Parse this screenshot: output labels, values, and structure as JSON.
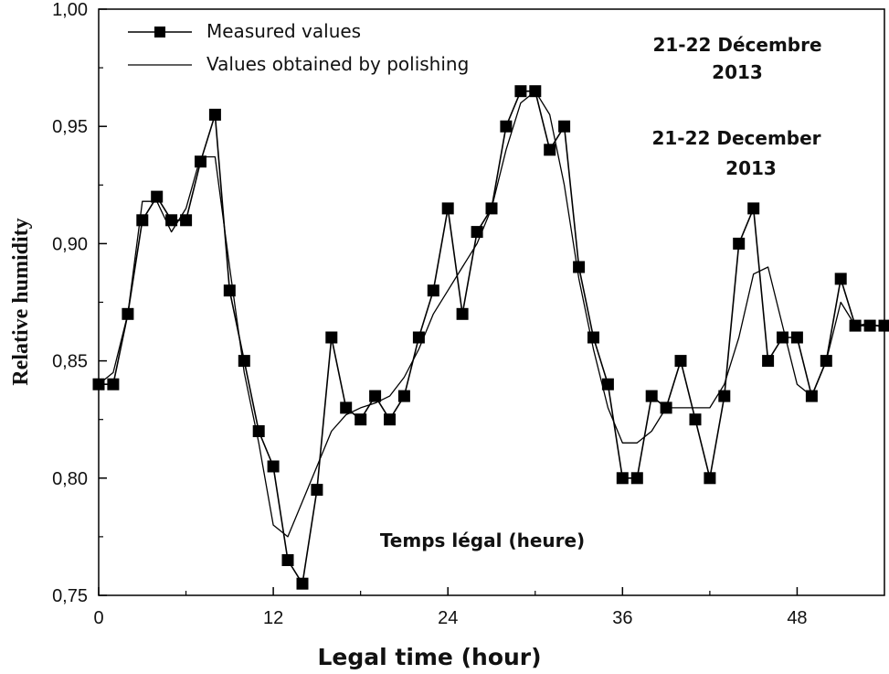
{
  "chart_data": {
    "type": "line",
    "xlabel": "Legal time (hour)",
    "ylabel": "Relative humidity",
    "xlim": [
      0,
      54
    ],
    "ylim": [
      0.75,
      1.0
    ],
    "x_ticks": [
      0,
      12,
      24,
      36,
      48
    ],
    "x_tick_labels": [
      "0",
      "12",
      "24",
      "36",
      "48"
    ],
    "y_ticks": [
      0.75,
      0.8,
      0.85,
      0.9,
      0.95,
      1.0
    ],
    "y_tick_labels": [
      "0,75",
      "0,80",
      "0,85",
      "0,90",
      "0,95",
      "1,00"
    ],
    "legend_position": "top-left",
    "annotations": {
      "date_fr_line1": "21-22 Décembre",
      "date_fr_line2": "2013",
      "date_en_line1": "21-22 December",
      "date_en_line2": "2013",
      "xlabel_fr": "Temps légal (heure)"
    },
    "series": [
      {
        "name": "Measured values",
        "marker": "square",
        "color": "#000000",
        "x": [
          0,
          1,
          2,
          3,
          4,
          5,
          6,
          7,
          8,
          9,
          10,
          11,
          12,
          13,
          14,
          15,
          16,
          17,
          18,
          19,
          20,
          21,
          22,
          23,
          24,
          25,
          26,
          27,
          28,
          29,
          30,
          31,
          32,
          33,
          34,
          35,
          36,
          37,
          38,
          39,
          40,
          41,
          42,
          43,
          44,
          45,
          46,
          47,
          48,
          49,
          50,
          51,
          52,
          53,
          54
        ],
        "values": [
          0.84,
          0.84,
          0.87,
          0.91,
          0.92,
          0.91,
          0.91,
          0.935,
          0.955,
          0.88,
          0.85,
          0.82,
          0.805,
          0.765,
          0.755,
          0.795,
          0.86,
          0.83,
          0.825,
          0.835,
          0.825,
          0.835,
          0.86,
          0.88,
          0.915,
          0.87,
          0.905,
          0.915,
          0.95,
          0.965,
          0.965,
          0.94,
          0.95,
          0.89,
          0.86,
          0.84,
          0.8,
          0.8,
          0.835,
          0.83,
          0.85,
          0.825,
          0.8,
          0.835,
          0.9,
          0.915,
          0.85,
          0.86,
          0.86,
          0.835,
          0.85,
          0.885,
          0.865,
          0.865,
          0.865
        ]
      },
      {
        "name": "Values obtained by polishing",
        "marker": "none",
        "color": "#000000",
        "x": [
          0,
          1,
          2,
          3,
          4,
          5,
          6,
          7,
          8,
          9,
          10,
          11,
          12,
          13,
          14,
          15,
          16,
          17,
          18,
          19,
          20,
          21,
          22,
          23,
          24,
          25,
          26,
          27,
          28,
          29,
          30,
          31,
          32,
          33,
          34,
          35,
          36,
          37,
          38,
          39,
          40,
          41,
          42,
          43,
          44,
          45,
          46,
          47,
          48,
          49,
          50,
          51,
          52,
          53,
          54
        ],
        "values": [
          0.84,
          0.845,
          0.87,
          0.918,
          0.918,
          0.905,
          0.915,
          0.937,
          0.937,
          0.89,
          0.845,
          0.815,
          0.78,
          0.775,
          0.79,
          0.805,
          0.82,
          0.827,
          0.83,
          0.832,
          0.835,
          0.843,
          0.855,
          0.87,
          0.88,
          0.89,
          0.9,
          0.915,
          0.94,
          0.96,
          0.965,
          0.955,
          0.925,
          0.885,
          0.855,
          0.83,
          0.815,
          0.815,
          0.82,
          0.83,
          0.83,
          0.83,
          0.83,
          0.84,
          0.86,
          0.887,
          0.89,
          0.865,
          0.84,
          0.835,
          0.85,
          0.875,
          0.865,
          0.866,
          0.864
        ]
      }
    ]
  }
}
